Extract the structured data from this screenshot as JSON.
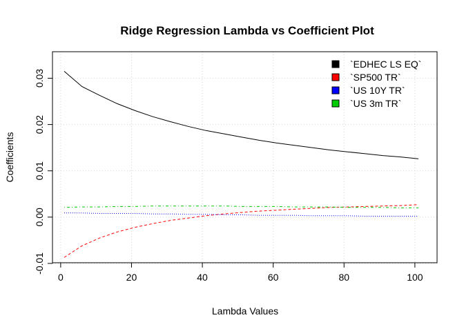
{
  "chart_data": {
    "type": "line",
    "title": "Ridge Regression Lambda vs Coefficient Plot",
    "xlabel": "Lambda Values",
    "ylabel": "Coefficients",
    "xlim": [
      1,
      101
    ],
    "ylim": [
      -0.01,
      0.032
    ],
    "x_ticks": [
      0,
      20,
      40,
      60,
      80,
      100
    ],
    "x_tick_labels": [
      "0",
      "20",
      "40",
      "60",
      "80",
      "100"
    ],
    "y_ticks": [
      -0.01,
      0.0,
      0.01,
      0.02,
      0.03
    ],
    "y_tick_labels": [
      "-0.01",
      "0.00",
      "0.01",
      "0.02",
      "0.03"
    ],
    "grid": true,
    "legend_position": "top-right",
    "x": [
      1,
      6,
      11,
      16,
      21,
      26,
      31,
      36,
      41,
      46,
      51,
      56,
      61,
      66,
      71,
      76,
      81,
      86,
      91,
      96,
      101
    ],
    "series": [
      {
        "name": "`EDHEC LS EQ`",
        "color": "#000000",
        "dash": "solid",
        "values": [
          0.0315,
          0.0282,
          0.0263,
          0.0245,
          0.023,
          0.0217,
          0.0206,
          0.0196,
          0.0187,
          0.018,
          0.0173,
          0.0166,
          0.016,
          0.0155,
          0.015,
          0.0145,
          0.0141,
          0.0137,
          0.0133,
          0.013,
          0.0126
        ]
      },
      {
        "name": "`SP500 TR`",
        "color": "#ff0000",
        "dash": "dashed",
        "values": [
          -0.0087,
          -0.0062,
          -0.0045,
          -0.0032,
          -0.0022,
          -0.0014,
          -0.0007,
          -0.0002,
          0.0003,
          0.0007,
          0.001,
          0.0013,
          0.0015,
          0.0017,
          0.0019,
          0.0021,
          0.0022,
          0.0023,
          0.0024,
          0.0025,
          0.0027
        ]
      },
      {
        "name": "`US 10Y TR`",
        "color": "#0000ff",
        "dash": "dotted",
        "values": [
          0.0009,
          0.0009,
          0.0008,
          0.0008,
          0.0008,
          0.0007,
          0.0007,
          0.0006,
          0.0006,
          0.0005,
          0.0005,
          0.0004,
          0.0004,
          0.0004,
          0.0003,
          0.0003,
          0.0003,
          0.0002,
          0.0002,
          0.0002,
          0.0002
        ]
      },
      {
        "name": "`US 3m TR`",
        "color": "#00cc00",
        "dash": "dotdash",
        "values": [
          0.0021,
          0.0022,
          0.0022,
          0.0023,
          0.0023,
          0.0024,
          0.0024,
          0.0024,
          0.0024,
          0.0024,
          0.0023,
          0.0023,
          0.0023,
          0.0022,
          0.0022,
          0.0022,
          0.0021,
          0.0021,
          0.0021,
          0.002,
          0.002
        ]
      }
    ]
  }
}
